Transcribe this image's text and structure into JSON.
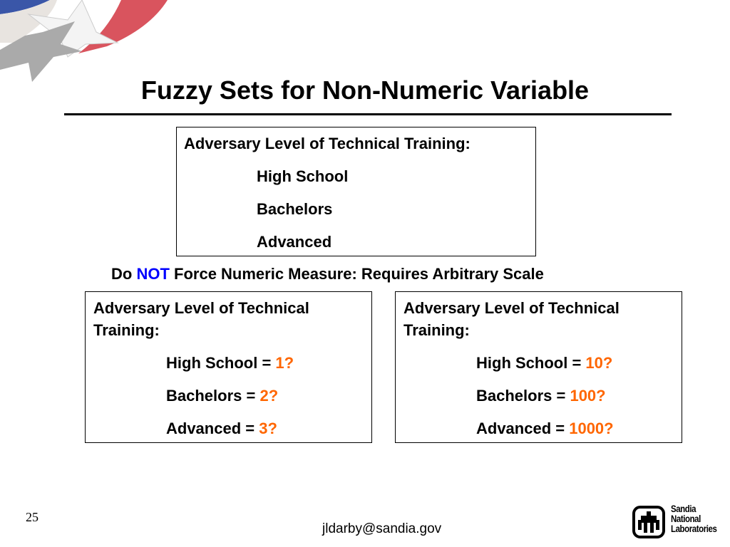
{
  "title": "Fuzzy Sets for Non-Numeric Variable",
  "top_box": {
    "heading": "Adversary Level of Technical Training:",
    "items": [
      "High School",
      "Bachelors",
      "Advanced"
    ]
  },
  "note": {
    "pre": "Do ",
    "emphasis": "NOT",
    "post": " Force  Numeric Measure: Requires Arbitrary Scale"
  },
  "left_box": {
    "heading_1": "Adversary Level of Technical",
    "heading_2": "Training:",
    "items": [
      {
        "label": "High School = ",
        "value": "1?"
      },
      {
        "label": "Bachelors = ",
        "value": "2?"
      },
      {
        "label": "Advanced = ",
        "value": "3?"
      }
    ]
  },
  "right_box": {
    "heading_1": "Adversary Level of Technical",
    "heading_2": "Training:",
    "items": [
      {
        "label": "High School = ",
        "value": "10?"
      },
      {
        "label": "Bachelors = ",
        "value": "100?"
      },
      {
        "label": "Advanced = ",
        "value": "1000?"
      }
    ]
  },
  "footer": {
    "page_number": "25",
    "email": "jldarby@sandia.gov",
    "logo_text": "Sandia National Laboratories"
  },
  "colors": {
    "emphasis": "#0000ff",
    "values": "#ff6600"
  }
}
